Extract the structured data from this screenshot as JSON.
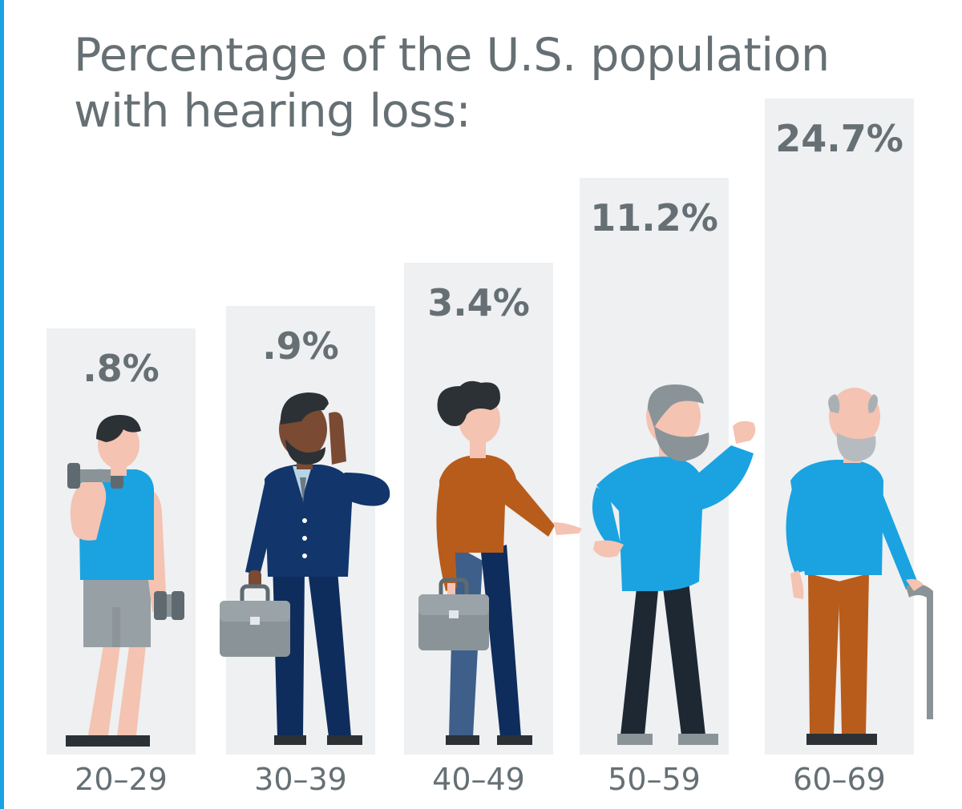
{
  "colors": {
    "accent_line": "#1aa3e0",
    "bar_background": "#eef0f2",
    "text": "#667074"
  },
  "chart_data": {
    "type": "bar",
    "title": "Percentage of the U.S. population with hearing loss:",
    "title_lines": [
      "Percentage of the U.S. population",
      "with hearing loss:"
    ],
    "xlabel": "",
    "ylabel": "",
    "categories": [
      "20–29",
      "30–39",
      "40–49",
      "50–59",
      "60–69"
    ],
    "values": [
      0.8,
      0.9,
      3.4,
      11.2,
      24.7
    ],
    "value_labels": [
      ".8%",
      ".9%",
      "3.4%",
      "11.2%",
      "24.7%"
    ],
    "grid": false,
    "legend": "none"
  },
  "illustrations": [
    {
      "name": "person-with-dumbbells-icon"
    },
    {
      "name": "businessman-on-phone-icon"
    },
    {
      "name": "young-man-with-briefcase-icon"
    },
    {
      "name": "bearded-man-icon"
    },
    {
      "name": "elderly-man-with-cane-icon"
    }
  ]
}
